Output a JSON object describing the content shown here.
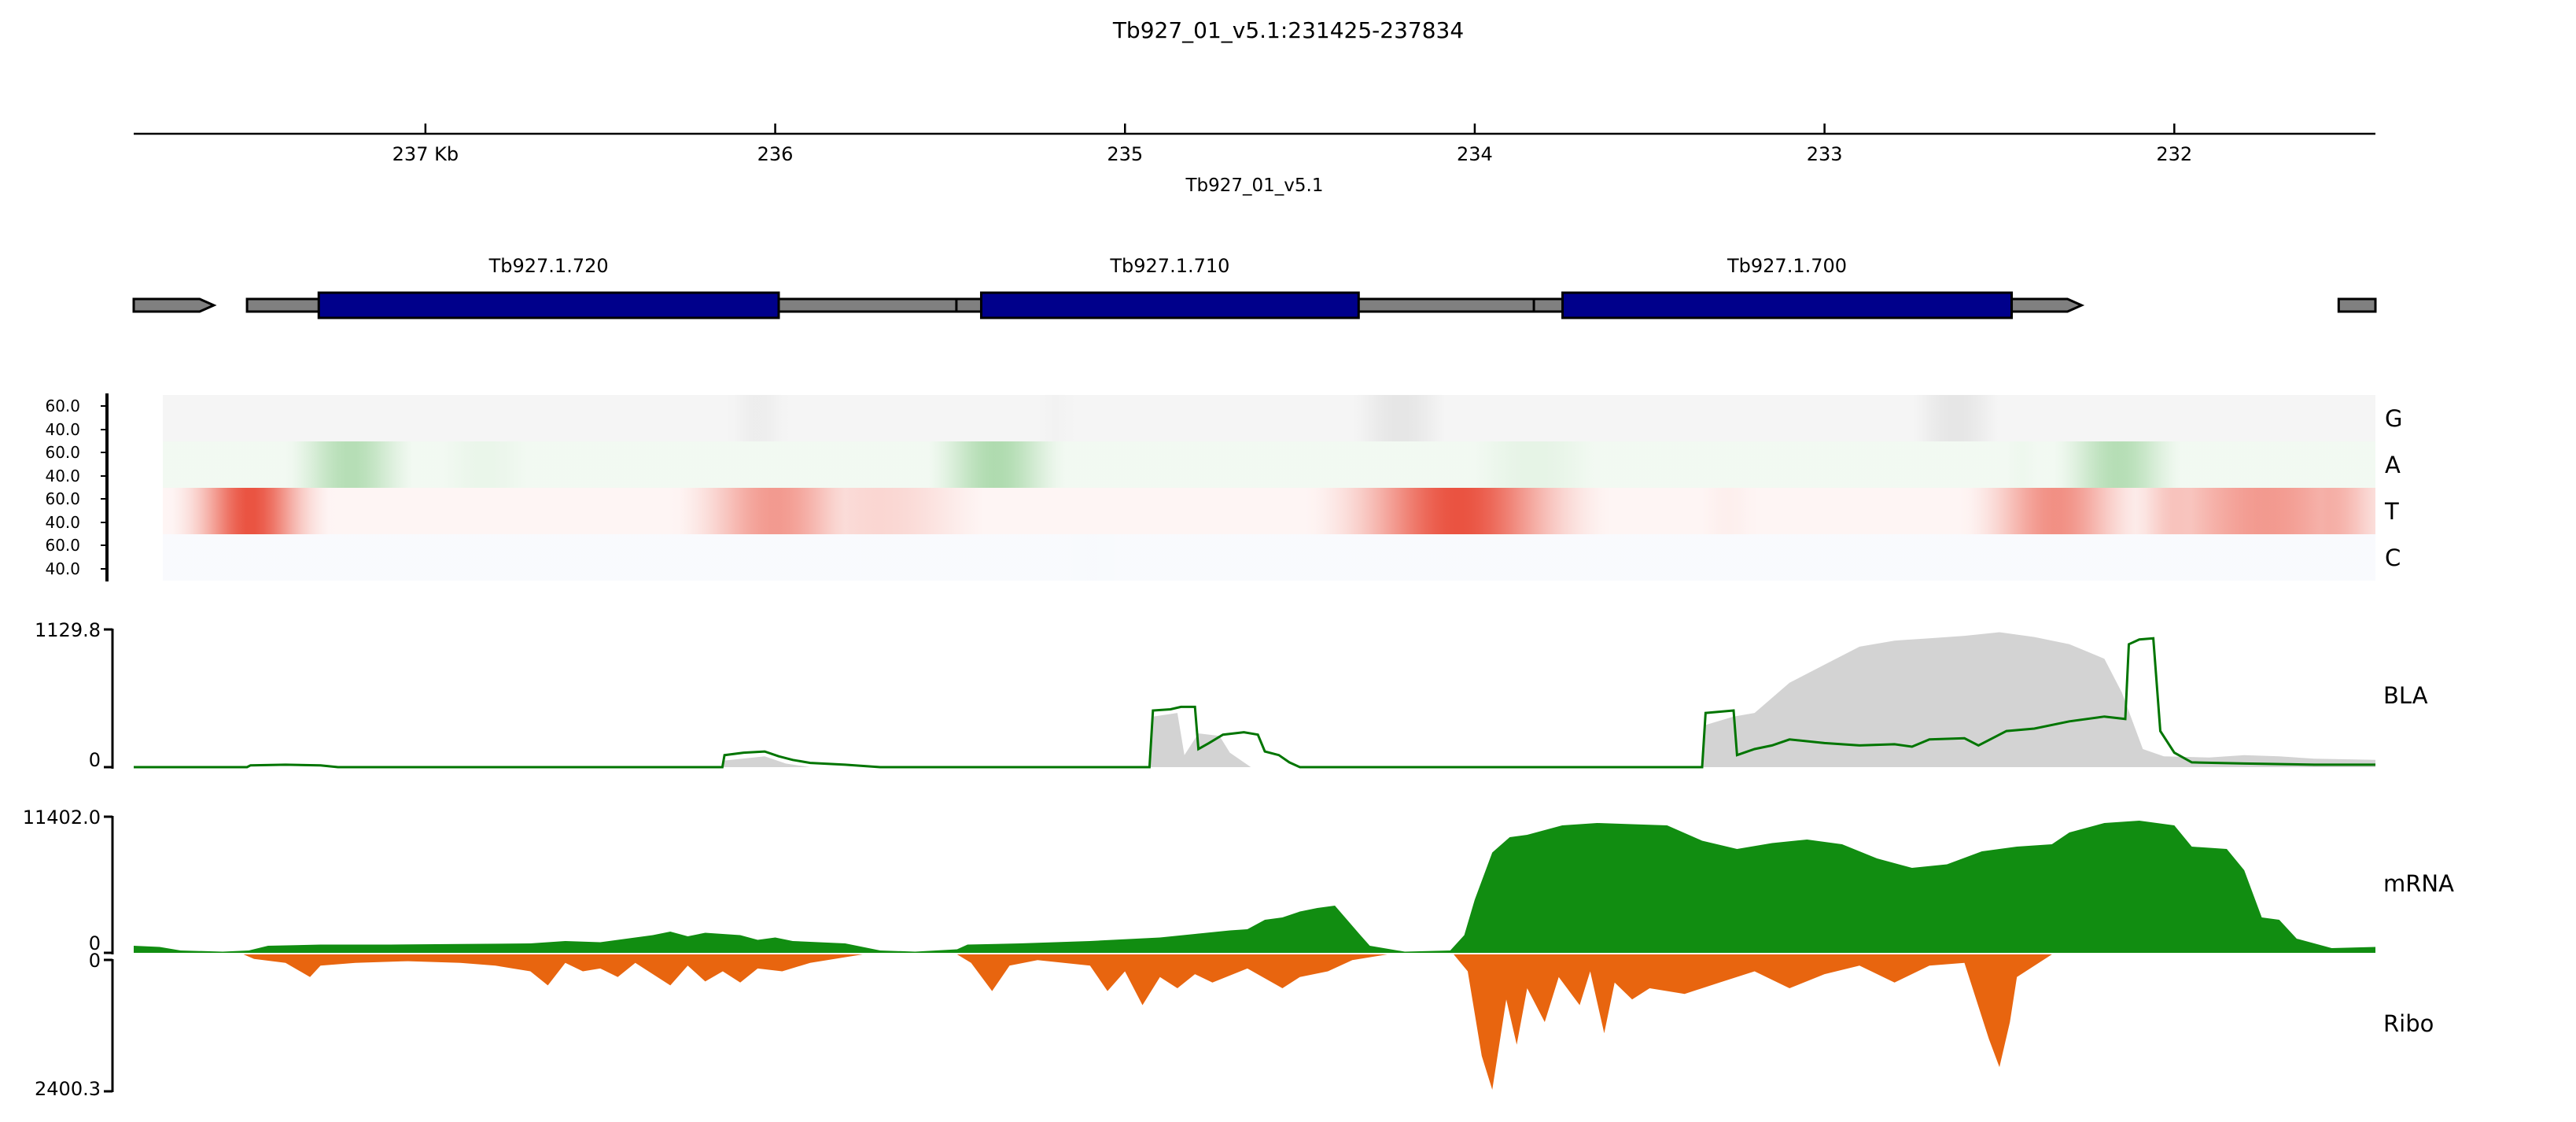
{
  "title": "Tb927_01_v5.1:231425-237834",
  "x_axis": {
    "chromosome_label": "Tb927_01_v5.1",
    "region": [
      231425,
      237834
    ],
    "reversed": true,
    "ticks": [
      {
        "pos": 237000,
        "label": "237 Kb"
      },
      {
        "pos": 236000,
        "label": "236"
      },
      {
        "pos": 235000,
        "label": "235"
      },
      {
        "pos": 234000,
        "label": "234"
      },
      {
        "pos": 233000,
        "label": "233"
      },
      {
        "pos": 232000,
        "label": "232"
      }
    ]
  },
  "genes": [
    {
      "name": "",
      "start": 237605,
      "end": 237834,
      "cds": null
    },
    {
      "name": "Tb927.1.720",
      "start": 235429,
      "end": 237510,
      "cds": [
        235990,
        237305
      ]
    },
    {
      "name": "Tb927.1.710",
      "start": 233770,
      "end": 235482,
      "cds": [
        234332,
        235411
      ]
    },
    {
      "name": "Tb927.1.700",
      "start": 232265,
      "end": 233831,
      "cds": [
        232465,
        233749
      ]
    },
    {
      "name": "",
      "start": 231425,
      "end": 231530,
      "cds": null
    }
  ],
  "nucleotide_heatmap": {
    "tick_labels": [
      "60.0",
      "40.0"
    ],
    "rows": [
      {
        "label": "G",
        "color": "#000000",
        "peaks": [
          [
            236110,
            120,
            0.07
          ],
          [
            235250,
            120,
            0.05
          ],
          [
            234250,
            160,
            0.1
          ],
          [
            232640,
            150,
            0.1
          ]
        ]
      },
      {
        "label": "A",
        "color": "#2ca02c",
        "peaks": [
          [
            237290,
            160,
            0.35
          ],
          [
            236900,
            200,
            0.1
          ],
          [
            235420,
            170,
            0.38
          ],
          [
            233860,
            250,
            0.12
          ],
          [
            233000,
            150,
            0.06
          ],
          [
            232170,
            160,
            0.35
          ],
          [
            232450,
            100,
            0.08
          ]
        ]
      },
      {
        "label": "T",
        "color": "#e6341f",
        "peaks": [
          [
            237580,
            160,
            0.85
          ],
          [
            236060,
            220,
            0.5
          ],
          [
            235760,
            300,
            0.2
          ],
          [
            234080,
            300,
            0.85
          ],
          [
            233300,
            120,
            0.08
          ],
          [
            232350,
            200,
            0.55
          ],
          [
            232000,
            120,
            0.3
          ],
          [
            231740,
            350,
            0.5
          ],
          [
            231560,
            160,
            0.4
          ]
        ]
      },
      {
        "label": "C",
        "color": "#6b8ed6",
        "peaks": [
          [
            235140,
            180,
            0.05
          ]
        ]
      }
    ],
    "bases": [
      0.04,
      0.06,
      0.05,
      0.04
    ]
  },
  "tracks": {
    "BLA": {
      "label": "BLA",
      "ylim": [
        0,
        1129.8
      ],
      "tick_labels": [
        "1129.8",
        "0"
      ],
      "fill_color": "#d3d3d3",
      "line_color": "#007500",
      "fill": [
        [
          237834,
          0
        ],
        [
          236151,
          0
        ],
        [
          236145,
          55
        ],
        [
          236030,
          90
        ],
        [
          235970,
          30
        ],
        [
          235900,
          0
        ],
        [
          234930,
          0
        ],
        [
          234920,
          420
        ],
        [
          234850,
          450
        ],
        [
          234830,
          100
        ],
        [
          234790,
          280
        ],
        [
          234730,
          260
        ],
        [
          234700,
          120
        ],
        [
          234640,
          0
        ],
        [
          233350,
          0
        ],
        [
          233340,
          350
        ],
        [
          233260,
          420
        ],
        [
          233200,
          450
        ],
        [
          233100,
          700
        ],
        [
          233000,
          850
        ],
        [
          232900,
          1000
        ],
        [
          232800,
          1050
        ],
        [
          232700,
          1070
        ],
        [
          232600,
          1090
        ],
        [
          232500,
          1120
        ],
        [
          232400,
          1080
        ],
        [
          232300,
          1020
        ],
        [
          232200,
          900
        ],
        [
          232150,
          620
        ],
        [
          232090,
          150
        ],
        [
          232030,
          90
        ],
        [
          231900,
          80
        ],
        [
          231800,
          100
        ],
        [
          231700,
          90
        ],
        [
          231600,
          70
        ],
        [
          231425,
          60
        ]
      ],
      "line": [
        [
          237834,
          0
        ],
        [
          237510,
          0
        ],
        [
          237500,
          15
        ],
        [
          237400,
          20
        ],
        [
          237300,
          15
        ],
        [
          237250,
          0
        ],
        [
          236151,
          0
        ],
        [
          236145,
          100
        ],
        [
          236090,
          120
        ],
        [
          236030,
          130
        ],
        [
          235990,
          90
        ],
        [
          235950,
          60
        ],
        [
          235900,
          35
        ],
        [
          235800,
          20
        ],
        [
          235700,
          0
        ],
        [
          234930,
          0
        ],
        [
          234920,
          470
        ],
        [
          234870,
          480
        ],
        [
          234840,
          500
        ],
        [
          234800,
          500
        ],
        [
          234790,
          150
        ],
        [
          234760,
          200
        ],
        [
          234720,
          270
        ],
        [
          234660,
          290
        ],
        [
          234620,
          270
        ],
        [
          234600,
          130
        ],
        [
          234560,
          100
        ],
        [
          234530,
          40
        ],
        [
          234500,
          0
        ],
        [
          233350,
          0
        ],
        [
          233340,
          450
        ],
        [
          233260,
          470
        ],
        [
          233250,
          100
        ],
        [
          233200,
          150
        ],
        [
          233150,
          180
        ],
        [
          233100,
          230
        ],
        [
          233000,
          200
        ],
        [
          232900,
          180
        ],
        [
          232800,
          190
        ],
        [
          232750,
          170
        ],
        [
          232700,
          230
        ],
        [
          232600,
          240
        ],
        [
          232560,
          180
        ],
        [
          232480,
          300
        ],
        [
          232400,
          320
        ],
        [
          232300,
          380
        ],
        [
          232200,
          420
        ],
        [
          232140,
          400
        ],
        [
          232130,
          1020
        ],
        [
          232100,
          1060
        ],
        [
          232060,
          1070
        ],
        [
          232040,
          300
        ],
        [
          232000,
          120
        ],
        [
          231950,
          40
        ],
        [
          231800,
          30
        ],
        [
          231600,
          20
        ],
        [
          231425,
          20
        ]
      ]
    },
    "mRNA": {
      "label": "mRNA",
      "ylim": [
        0,
        11402.0
      ],
      "tick_labels": [
        "11402.0",
        "0"
      ],
      "fill_color": "#118d11",
      "fill": [
        [
          237834,
          600
        ],
        [
          237760,
          500
        ],
        [
          237700,
          200
        ],
        [
          237580,
          100
        ],
        [
          237505,
          200
        ],
        [
          237450,
          600
        ],
        [
          237300,
          700
        ],
        [
          237100,
          700
        ],
        [
          236900,
          750
        ],
        [
          236700,
          800
        ],
        [
          236600,
          1000
        ],
        [
          236500,
          900
        ],
        [
          236350,
          1500
        ],
        [
          236300,
          1800
        ],
        [
          236250,
          1400
        ],
        [
          236200,
          1700
        ],
        [
          236100,
          1500
        ],
        [
          236050,
          1100
        ],
        [
          236000,
          1300
        ],
        [
          235950,
          1000
        ],
        [
          235800,
          800
        ],
        [
          235700,
          200
        ],
        [
          235600,
          100
        ],
        [
          235480,
          300
        ],
        [
          235450,
          700
        ],
        [
          235300,
          800
        ],
        [
          235100,
          1000
        ],
        [
          234900,
          1300
        ],
        [
          234800,
          1600
        ],
        [
          234700,
          1900
        ],
        [
          234650,
          2000
        ],
        [
          234600,
          2800
        ],
        [
          234550,
          3000
        ],
        [
          234500,
          3500
        ],
        [
          234450,
          3800
        ],
        [
          234400,
          4000
        ],
        [
          234330,
          1600
        ],
        [
          234300,
          600
        ],
        [
          234200,
          100
        ],
        [
          234070,
          200
        ],
        [
          234030,
          1500
        ],
        [
          234000,
          4500
        ],
        [
          233950,
          8500
        ],
        [
          233900,
          9800
        ],
        [
          233850,
          10000
        ],
        [
          233750,
          10800
        ],
        [
          233650,
          11000
        ],
        [
          233550,
          10900
        ],
        [
          233450,
          10800
        ],
        [
          233350,
          9500
        ],
        [
          233250,
          8800
        ],
        [
          233150,
          9300
        ],
        [
          233050,
          9600
        ],
        [
          232950,
          9200
        ],
        [
          232850,
          8000
        ],
        [
          232750,
          7200
        ],
        [
          232650,
          7500
        ],
        [
          232550,
          8600
        ],
        [
          232450,
          9000
        ],
        [
          232350,
          9200
        ],
        [
          232300,
          10200
        ],
        [
          232200,
          11000
        ],
        [
          232100,
          11200
        ],
        [
          232000,
          10800
        ],
        [
          231950,
          9000
        ],
        [
          231850,
          8800
        ],
        [
          231800,
          7000
        ],
        [
          231750,
          3000
        ],
        [
          231700,
          2800
        ],
        [
          231650,
          1200
        ],
        [
          231550,
          400
        ],
        [
          231425,
          500
        ]
      ]
    },
    "Ribo": {
      "label": "Ribo",
      "ylim": [
        0,
        2400.3
      ],
      "tick_labels": [
        "0",
        "2400.3"
      ],
      "fill_color": "#e8650f",
      "fill": [
        [
          237834,
          0
        ],
        [
          237520,
          0
        ],
        [
          237490,
          80
        ],
        [
          237400,
          150
        ],
        [
          237330,
          400
        ],
        [
          237300,
          200
        ],
        [
          237200,
          150
        ],
        [
          237050,
          120
        ],
        [
          236900,
          150
        ],
        [
          236800,
          200
        ],
        [
          236700,
          300
        ],
        [
          236650,
          550
        ],
        [
          236600,
          150
        ],
        [
          236550,
          300
        ],
        [
          236500,
          250
        ],
        [
          236450,
          400
        ],
        [
          236400,
          150
        ],
        [
          236300,
          550
        ],
        [
          236250,
          200
        ],
        [
          236200,
          480
        ],
        [
          236150,
          300
        ],
        [
          236100,
          500
        ],
        [
          236050,
          250
        ],
        [
          235980,
          300
        ],
        [
          235900,
          150
        ],
        [
          235750,
          0
        ],
        [
          235480,
          0
        ],
        [
          235440,
          150
        ],
        [
          235380,
          650
        ],
        [
          235330,
          200
        ],
        [
          235250,
          100
        ],
        [
          235100,
          200
        ],
        [
          235050,
          650
        ],
        [
          235000,
          300
        ],
        [
          234950,
          900
        ],
        [
          234900,
          400
        ],
        [
          234850,
          600
        ],
        [
          234800,
          350
        ],
        [
          234750,
          500
        ],
        [
          234650,
          250
        ],
        [
          234550,
          600
        ],
        [
          234500,
          400
        ],
        [
          234420,
          300
        ],
        [
          234350,
          100
        ],
        [
          234250,
          0
        ],
        [
          234060,
          0
        ],
        [
          234020,
          300
        ],
        [
          233980,
          1800
        ],
        [
          233950,
          2400
        ],
        [
          233910,
          800
        ],
        [
          233880,
          1600
        ],
        [
          233850,
          600
        ],
        [
          233800,
          1200
        ],
        [
          233760,
          400
        ],
        [
          233700,
          900
        ],
        [
          233670,
          300
        ],
        [
          233630,
          1400
        ],
        [
          233600,
          500
        ],
        [
          233550,
          800
        ],
        [
          233500,
          600
        ],
        [
          233400,
          700
        ],
        [
          233300,
          500
        ],
        [
          233200,
          300
        ],
        [
          233100,
          600
        ],
        [
          233000,
          350
        ],
        [
          232900,
          200
        ],
        [
          232800,
          500
        ],
        [
          232700,
          200
        ],
        [
          232600,
          150
        ],
        [
          232530,
          1500
        ],
        [
          232500,
          2000
        ],
        [
          232470,
          1200
        ],
        [
          232450,
          400
        ],
        [
          232350,
          0
        ],
        [
          231425,
          0
        ]
      ]
    }
  }
}
